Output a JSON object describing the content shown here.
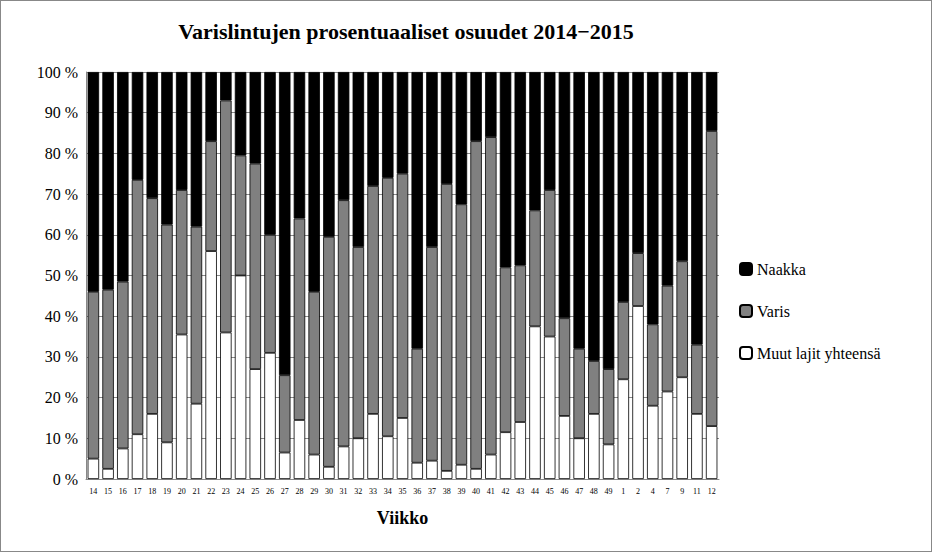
{
  "chart_data": {
    "type": "bar",
    "title": "Varislintujen prosentuaaliset osuudet 2014−2015",
    "x_label": "Viikko",
    "stacked": true,
    "grid": true,
    "legend": "right",
    "categories": [
      "14",
      "15",
      "16",
      "17",
      "18",
      "19",
      "20",
      "21",
      "22",
      "23",
      "24",
      "25",
      "26",
      "27",
      "28",
      "29",
      "30",
      "31",
      "32",
      "33",
      "34",
      "35",
      "36",
      "37",
      "38",
      "39",
      "40",
      "41",
      "42",
      "43",
      "44",
      "45",
      "46",
      "47",
      "48",
      "49",
      "1",
      "2",
      "4",
      "7",
      "9",
      "11",
      "12"
    ],
    "series": [
      {
        "name": "Muut lajit yhteensä",
        "color": "#ffffff",
        "values": [
          5,
          2.5,
          7.5,
          11,
          16,
          9,
          35.5,
          18.5,
          56,
          36,
          50,
          27,
          31,
          6.5,
          14.5,
          6,
          3,
          8,
          10,
          16,
          10.5,
          15,
          4,
          4.5,
          2,
          3.5,
          2.5,
          6,
          11.5,
          14,
          37.5,
          35,
          15.5,
          10,
          16,
          8.5,
          24.5,
          42.5,
          18,
          21.5,
          25,
          16,
          13
        ]
      },
      {
        "name": "Varis",
        "color": "#808080",
        "values": [
          41,
          44,
          41,
          62.5,
          53,
          53.5,
          35.5,
          43.5,
          27,
          57,
          29.5,
          50.5,
          29,
          19,
          49.5,
          40,
          56.5,
          60.5,
          47,
          56,
          63.5,
          60,
          28,
          52.5,
          70.5,
          64,
          80.5,
          78,
          40.5,
          38.5,
          28.5,
          36,
          24,
          22,
          13,
          18.5,
          19,
          13,
          20,
          26,
          28.5,
          17,
          72.5
        ]
      },
      {
        "name": "Naakka",
        "color": "#000000",
        "values": [
          54,
          53.5,
          51.5,
          26.5,
          31,
          37.5,
          29,
          38,
          17,
          7,
          20.5,
          22.5,
          40,
          74.5,
          36,
          54,
          40.5,
          31.5,
          43,
          28,
          26,
          25,
          68,
          43,
          27.5,
          32.5,
          17,
          16,
          48,
          47.5,
          34,
          29,
          60.5,
          68,
          71,
          73,
          56.5,
          44.5,
          62,
          52.5,
          46.5,
          67,
          14.5
        ]
      }
    ],
    "ylim": [
      0,
      100
    ],
    "yticks": [
      {
        "value": 0,
        "label": "0 %"
      },
      {
        "value": 10,
        "label": "10 %"
      },
      {
        "value": 20,
        "label": "20 %"
      },
      {
        "value": 30,
        "label": "30 %"
      },
      {
        "value": 40,
        "label": "40 %"
      },
      {
        "value": 50,
        "label": "50 %"
      },
      {
        "value": 60,
        "label": "60 %"
      },
      {
        "value": 70,
        "label": "70 %"
      },
      {
        "value": 80,
        "label": "80 %"
      },
      {
        "value": 90,
        "label": "90 %"
      },
      {
        "value": 100,
        "label": "100 %"
      }
    ]
  }
}
